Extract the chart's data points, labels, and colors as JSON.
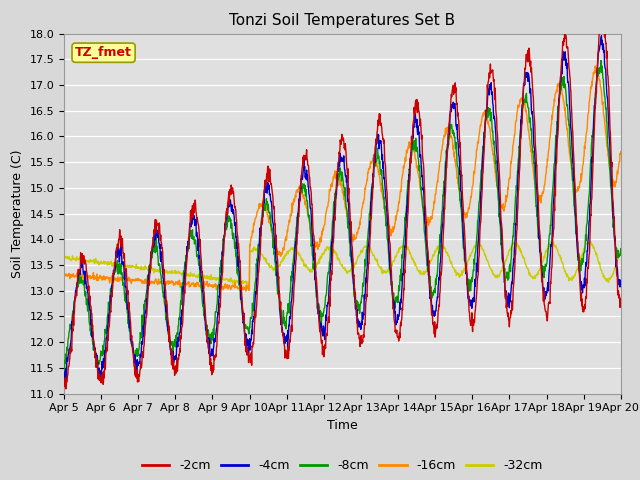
{
  "title": "Tonzi Soil Temperatures Set B",
  "xlabel": "Time",
  "ylabel": "Soil Temperature (C)",
  "ylim": [
    11.0,
    18.0
  ],
  "x_tick_labels": [
    "Apr 5",
    "Apr 6",
    "Apr 7",
    "Apr 8",
    "Apr 9",
    "Apr 10",
    "Apr 11",
    "Apr 12",
    "Apr 13",
    "Apr 14",
    "Apr 15",
    "Apr 16",
    "Apr 17",
    "Apr 18",
    "Apr 19",
    "Apr 20"
  ],
  "series_colors": [
    "#cc0000",
    "#0000cc",
    "#009900",
    "#ff8800",
    "#cccc00"
  ],
  "series_labels": [
    "-2cm",
    "-4cm",
    "-8cm",
    "-16cm",
    "-32cm"
  ],
  "fig_facecolor": "#d8d8d8",
  "ax_facecolor": "#e0e0e0",
  "grid_color": "#ffffff",
  "legend_label": "TZ_fmet",
  "legend_bg": "#ffff99",
  "legend_border": "#999900",
  "legend_text_color": "#cc0000",
  "title_fontsize": 11,
  "label_fontsize": 9,
  "tick_fontsize": 8
}
